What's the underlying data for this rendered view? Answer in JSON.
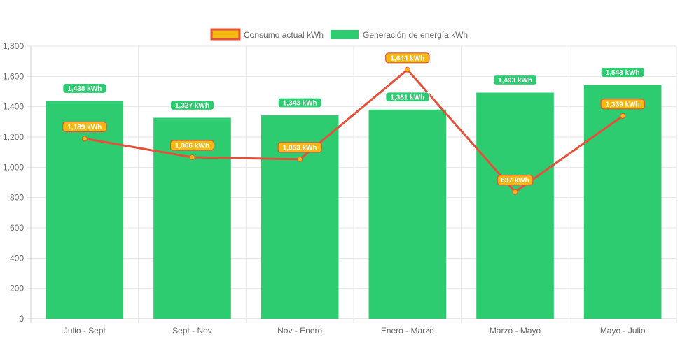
{
  "chart_data": {
    "type": "bar",
    "categories": [
      "Julio - Sept",
      "Sept - Nov",
      "Nov - Enero",
      "Enero - Marzo",
      "Marzo - Mayo",
      "Mayo - Julio"
    ],
    "ylim": [
      0,
      1800
    ],
    "y_ticks": [
      "0",
      "200",
      "400",
      "600",
      "800",
      "1,000",
      "1,200",
      "1,400",
      "1,600",
      "1,800"
    ],
    "grid": true,
    "legend_position": "top-center",
    "series": [
      {
        "name": "Consumo actual kWh",
        "type": "line",
        "values": [
          1189,
          1066,
          1053,
          1644,
          837,
          1339
        ],
        "labels": [
          "1,189 kWh",
          "1,066 kWh",
          "1,053 kWh",
          "1,644 kWh",
          "837 kWh",
          "1,339 kWh"
        ],
        "line_color": "#e4503a",
        "fill_color": "#f5b914"
      },
      {
        "name": "Generación de energía kWh",
        "type": "bar",
        "values": [
          1438,
          1327,
          1343,
          1381,
          1493,
          1543
        ],
        "labels": [
          "1,438 kWh",
          "1,327 kWh",
          "1,343 kWh",
          "1,381 kWh",
          "1,493 kWh",
          "1,543 kWh"
        ],
        "color": "#2ecc71"
      }
    ]
  }
}
